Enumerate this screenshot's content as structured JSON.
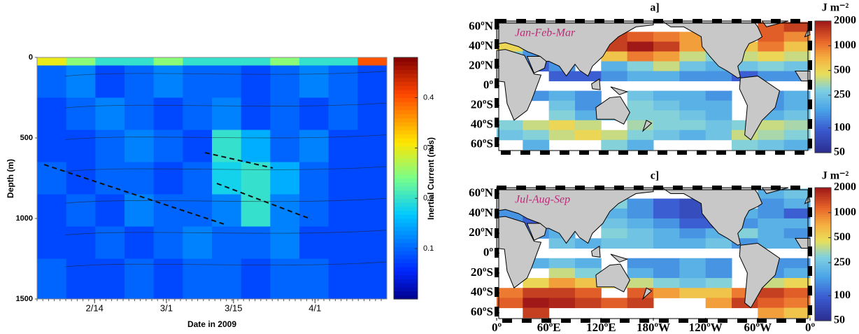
{
  "chart_data": [
    {
      "type": "heatmap",
      "x_label": "Date in 2009",
      "y_label": "Depth (m)",
      "xlim": [
        33,
        106
      ],
      "xticks": [
        {
          "value": 45,
          "label": "2/14"
        },
        {
          "value": 60,
          "label": "3/1"
        },
        {
          "value": 74,
          "label": "3/15"
        },
        {
          "value": 91,
          "label": "4/1"
        }
      ],
      "ylim": [
        0,
        1500
      ],
      "invert_y": true,
      "yticks": [
        0,
        500,
        1000,
        1500
      ],
      "y_edges": [
        0,
        50,
        250,
        450,
        650,
        850,
        1050,
        1250,
        1500
      ],
      "values": [
        [
          0.3,
          0.25,
          0.2,
          0.2,
          0.25,
          0.2,
          0.2,
          0.2,
          0.25,
          0.2,
          0.2,
          0.4
        ],
        [
          0.1,
          0.12,
          0.08,
          0.1,
          0.12,
          0.1,
          0.1,
          0.08,
          0.1,
          0.12,
          0.1,
          0.08
        ],
        [
          0.08,
          0.1,
          0.12,
          0.1,
          0.08,
          0.1,
          0.12,
          0.08,
          0.1,
          0.08,
          0.1,
          0.08
        ],
        [
          0.08,
          0.08,
          0.1,
          0.12,
          0.1,
          0.08,
          0.2,
          0.15,
          0.1,
          0.12,
          0.08,
          0.08
        ],
        [
          0.1,
          0.08,
          0.1,
          0.1,
          0.08,
          0.1,
          0.18,
          0.2,
          0.15,
          0.1,
          0.08,
          0.08
        ],
        [
          0.08,
          0.1,
          0.08,
          0.12,
          0.1,
          0.1,
          0.12,
          0.2,
          0.12,
          0.1,
          0.08,
          0.08
        ],
        [
          0.08,
          0.08,
          0.1,
          0.08,
          0.1,
          0.12,
          0.1,
          0.1,
          0.12,
          0.08,
          0.08,
          0.08
        ],
        [
          0.1,
          0.08,
          0.08,
          0.1,
          0.08,
          0.1,
          0.1,
          0.08,
          0.1,
          0.1,
          0.08,
          0.08
        ]
      ],
      "colorbar_label": "Inertial Current (m/s)",
      "clim": [
        0,
        0.48
      ],
      "cticks": [
        0.1,
        0.2,
        0.3,
        0.4
      ]
    },
    {
      "type": "map",
      "title": "a]",
      "annotation": "Jan-Feb-Mar",
      "colorbar_label": "J m⁻²",
      "xlim": [
        0,
        360
      ],
      "ylim": [
        -68,
        66
      ],
      "yticks": [
        {
          "value": 60,
          "label": "60ºN"
        },
        {
          "value": 40,
          "label": "40ºN"
        },
        {
          "value": 20,
          "label": "20ºN"
        },
        {
          "value": 0,
          "label": "0º"
        },
        {
          "value": -20,
          "label": "20ºS"
        },
        {
          "value": -40,
          "label": "40ºS"
        },
        {
          "value": -60,
          "label": "60ºS"
        }
      ],
      "x": [
        15,
        45,
        75,
        105,
        135,
        165,
        195,
        225,
        255,
        285,
        315,
        345
      ],
      "y": [
        60,
        50,
        40,
        30,
        20,
        10,
        0,
        -10,
        -20,
        -30,
        -40,
        -50,
        -60
      ],
      "values": [
        [
          900,
          null,
          null,
          null,
          null,
          null,
          null,
          null,
          null,
          null,
          1200,
          1500
        ],
        [
          700,
          null,
          null,
          null,
          1500,
          1200,
          1000,
          800,
          null,
          null,
          1200,
          900
        ],
        [
          500,
          200,
          null,
          null,
          1500,
          2000,
          1500,
          800,
          null,
          600,
          1000,
          600
        ],
        [
          300,
          150,
          null,
          null,
          600,
          1000,
          800,
          400,
          300,
          400,
          500,
          400
        ],
        [
          200,
          100,
          150,
          null,
          200,
          300,
          400,
          250,
          200,
          250,
          300,
          250
        ],
        [
          150,
          null,
          100,
          100,
          150,
          200,
          200,
          150,
          150,
          100,
          150,
          150
        ],
        [
          null,
          null,
          null,
          null,
          null,
          null,
          null,
          null,
          null,
          null,
          null,
          null
        ],
        [
          null,
          150,
          200,
          150,
          null,
          250,
          200,
          200,
          150,
          null,
          150,
          200
        ],
        [
          null,
          null,
          250,
          150,
          null,
          300,
          250,
          200,
          200,
          null,
          150,
          200
        ],
        [
          null,
          null,
          300,
          200,
          250,
          300,
          300,
          250,
          200,
          null,
          200,
          250
        ],
        [
          300,
          400,
          500,
          400,
          null,
          350,
          300,
          300,
          250,
          300,
          400,
          350
        ],
        [
          250,
          300,
          400,
          500,
          400,
          300,
          250,
          200,
          250,
          400,
          350,
          300
        ],
        [
          null,
          200,
          null,
          null,
          300,
          200,
          null,
          null,
          null,
          300,
          250,
          200
        ]
      ],
      "clim": [
        50,
        2000
      ],
      "log_scale": true,
      "cticks": [
        50,
        100,
        250,
        500,
        1000,
        2000
      ]
    },
    {
      "type": "map",
      "title": "c]",
      "annotation": "Jul-Aug-Sep",
      "colorbar_label": "J m⁻²",
      "xlim": [
        0,
        360
      ],
      "ylim": [
        -68,
        66
      ],
      "xticks": [
        {
          "value": 0,
          "label": "0º"
        },
        {
          "value": 60,
          "label": "60ºE"
        },
        {
          "value": 120,
          "label": "120ºE"
        },
        {
          "value": 180,
          "label": "180ºW"
        },
        {
          "value": 240,
          "label": "120ºW"
        },
        {
          "value": 300,
          "label": "60ºW"
        },
        {
          "value": 360,
          "label": "0º"
        }
      ],
      "yticks": [
        {
          "value": 60,
          "label": "60ºN"
        },
        {
          "value": 40,
          "label": "40ºN"
        },
        {
          "value": 20,
          "label": "20ºN"
        },
        {
          "value": 0,
          "label": "0º"
        },
        {
          "value": -20,
          "label": "20ºS"
        },
        {
          "value": -40,
          "label": "40ºS"
        },
        {
          "value": -60,
          "label": "60ºS"
        }
      ],
      "x": [
        15,
        45,
        75,
        105,
        135,
        165,
        195,
        225,
        255,
        285,
        315,
        345
      ],
      "y": [
        60,
        50,
        40,
        30,
        20,
        10,
        0,
        -10,
        -20,
        -30,
        -40,
        -50,
        -60
      ],
      "values": [
        [
          300,
          null,
          null,
          null,
          null,
          null,
          null,
          null,
          null,
          null,
          200,
          250
        ],
        [
          200,
          null,
          null,
          null,
          300,
          150,
          100,
          80,
          null,
          null,
          150,
          200
        ],
        [
          150,
          100,
          null,
          null,
          200,
          150,
          100,
          80,
          null,
          200,
          150,
          100
        ],
        [
          150,
          100,
          null,
          null,
          250,
          200,
          150,
          100,
          100,
          150,
          200,
          200
        ],
        [
          200,
          150,
          200,
          null,
          300,
          250,
          200,
          150,
          200,
          300,
          200,
          150
        ],
        [
          200,
          null,
          250,
          200,
          250,
          250,
          200,
          200,
          250,
          150,
          200,
          200
        ],
        [
          null,
          null,
          null,
          null,
          null,
          null,
          null,
          null,
          null,
          null,
          null,
          null
        ],
        [
          null,
          200,
          250,
          200,
          null,
          150,
          150,
          200,
          150,
          null,
          150,
          150
        ],
        [
          null,
          null,
          400,
          300,
          null,
          200,
          150,
          200,
          150,
          null,
          150,
          200
        ],
        [
          null,
          500,
          800,
          600,
          500,
          400,
          300,
          250,
          300,
          null,
          400,
          500
        ],
        [
          1000,
          1500,
          1500,
          1200,
          null,
          1200,
          800,
          600,
          600,
          1000,
          1500,
          1200
        ],
        [
          1200,
          2000,
          1800,
          1500,
          1200,
          1500,
          null,
          null,
          800,
          1500,
          1200,
          1000
        ],
        [
          null,
          1500,
          null,
          null,
          null,
          null,
          null,
          null,
          null,
          null,
          800,
          600
        ]
      ],
      "clim": [
        50,
        2000
      ],
      "log_scale": true,
      "cticks": [
        50,
        100,
        250,
        500,
        1000,
        2000
      ]
    }
  ]
}
